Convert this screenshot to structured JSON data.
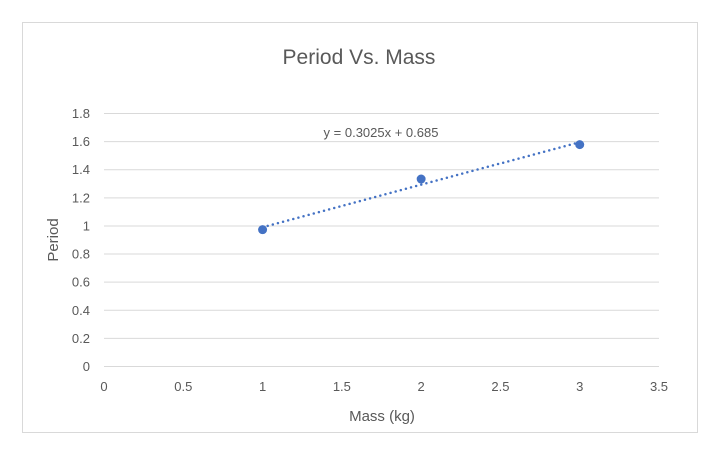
{
  "chart_data": {
    "type": "scatter",
    "title": "Period Vs. Mass",
    "xlabel": "Mass (kg)",
    "ylabel": "Period",
    "xlim": [
      0,
      3.5
    ],
    "ylim": [
      0,
      1.8
    ],
    "xticks": [
      "0",
      "0.5",
      "1",
      "1.5",
      "2",
      "2.5",
      "3",
      "3.5"
    ],
    "yticks": [
      "0",
      "0.2",
      "0.4",
      "0.6",
      "0.8",
      "1",
      "1.2",
      "1.4",
      "1.6",
      "1.8"
    ],
    "grid": "horizontal",
    "legend": "none",
    "series": [
      {
        "x": [
          1,
          2,
          3
        ],
        "y": [
          0.97,
          1.33,
          1.575
        ],
        "color": "#4472C4"
      }
    ],
    "trendline": {
      "type": "linear",
      "slope": 0.3025,
      "intercept": 0.685,
      "x_range": [
        1,
        3
      ],
      "style": "dotted",
      "color": "#4472C4",
      "equation": "y = 0.3025x + 0.685"
    }
  }
}
